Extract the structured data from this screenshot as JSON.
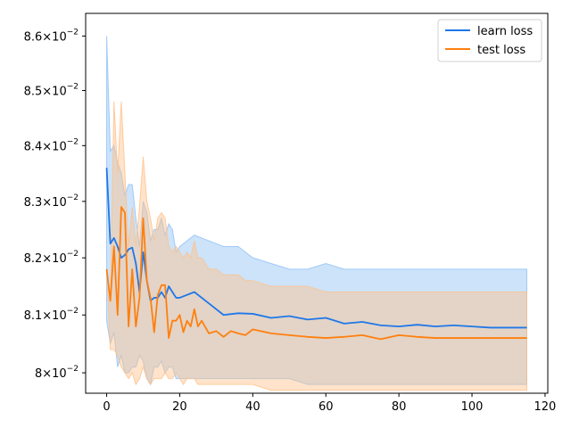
{
  "chart_data": {
    "type": "line",
    "title": "",
    "xlabel": "",
    "ylabel": "",
    "xlim": [
      -5.75,
      120.75
    ],
    "ylim": [
      0.07965,
      0.08642
    ],
    "yscale": "log",
    "x_ticks": [
      0,
      20,
      40,
      60,
      80,
      100,
      120
    ],
    "x_tick_labels": [
      "0",
      "20",
      "40",
      "60",
      "80",
      "100",
      "120"
    ],
    "y_ticks": [
      0.08,
      0.081,
      0.082,
      0.083,
      0.084,
      0.085,
      0.086
    ],
    "y_tick_labels": [
      {
        "mant": "8",
        "exp": "−2",
        "times": false
      },
      {
        "mant": "8.1",
        "exp": "−2",
        "times": true
      },
      {
        "mant": "8.2",
        "exp": "−2",
        "times": true
      },
      {
        "mant": "8.3",
        "exp": "−2",
        "times": true
      },
      {
        "mant": "8.4",
        "exp": "−2",
        "times": true
      },
      {
        "mant": "8.5",
        "exp": "−2",
        "times": true
      },
      {
        "mant": "8.6",
        "exp": "−2",
        "times": true
      }
    ],
    "tick_times": "×",
    "tick_base": "10",
    "legend": {
      "position": "top-right"
    },
    "series": [
      {
        "name": "learn loss",
        "color": "#1f77e8",
        "band_color": "#8fc1f5",
        "band_opacity": 0.45,
        "x": [
          0,
          1,
          2,
          3,
          4,
          5,
          6,
          7,
          8,
          9,
          10,
          11,
          12,
          13,
          14,
          15,
          16,
          17,
          18,
          19,
          20,
          24,
          28,
          32,
          36,
          40,
          45,
          50,
          55,
          60,
          65,
          70,
          75,
          80,
          85,
          90,
          95,
          100,
          105,
          110,
          115
        ],
        "values": [
          0.0836,
          0.08225,
          0.08235,
          0.0822,
          0.082,
          0.08205,
          0.08215,
          0.08218,
          0.0819,
          0.0814,
          0.0821,
          0.0816,
          0.08125,
          0.0813,
          0.0813,
          0.0814,
          0.0813,
          0.0815,
          0.0814,
          0.0813,
          0.0813,
          0.0814,
          0.0812,
          0.081,
          0.08103,
          0.08102,
          0.08095,
          0.08098,
          0.08092,
          0.08095,
          0.08085,
          0.08088,
          0.08082,
          0.0808,
          0.08083,
          0.0808,
          0.08082,
          0.0808,
          0.08078,
          0.08078,
          0.08078
        ],
        "upper": [
          0.086,
          0.0839,
          0.084,
          0.0837,
          0.0835,
          0.0831,
          0.0833,
          0.0833,
          0.0827,
          0.0822,
          0.083,
          0.0828,
          0.0823,
          0.0825,
          0.0825,
          0.0827,
          0.0824,
          0.0826,
          0.0825,
          0.0821,
          0.0822,
          0.0824,
          0.0823,
          0.0822,
          0.0822,
          0.082,
          0.0819,
          0.0818,
          0.0818,
          0.0819,
          0.0818,
          0.0818,
          0.0818,
          0.0818,
          0.0818,
          0.0818,
          0.0818,
          0.0818,
          0.0818,
          0.0818,
          0.0818
        ],
        "lower": [
          0.0809,
          0.0805,
          0.0807,
          0.0801,
          0.0803,
          0.08,
          0.08,
          0.0801,
          0.0801,
          0.0803,
          0.0802,
          0.0799,
          0.0798,
          0.0801,
          0.0801,
          0.0802,
          0.08,
          0.0801,
          0.0801,
          0.0799,
          0.0799,
          0.0799,
          0.0799,
          0.0799,
          0.0799,
          0.0799,
          0.0799,
          0.0799,
          0.0798,
          0.0798,
          0.0798,
          0.0798,
          0.0798,
          0.0798,
          0.0798,
          0.0798,
          0.0798,
          0.0798,
          0.0798,
          0.0798,
          0.0798
        ]
      },
      {
        "name": "test loss",
        "color": "#ff7f0e",
        "band_color": "#ffc08a",
        "band_opacity": 0.45,
        "x": [
          0,
          1,
          2,
          3,
          4,
          5,
          6,
          7,
          8,
          9,
          10,
          11,
          12,
          13,
          14,
          15,
          16,
          17,
          18,
          19,
          20,
          21,
          22,
          23,
          24,
          25,
          26,
          28,
          30,
          32,
          34,
          36,
          38,
          40,
          45,
          50,
          55,
          60,
          65,
          70,
          75,
          80,
          85,
          90,
          95,
          100,
          105,
          110,
          115
        ],
        "values": [
          0.0818,
          0.08125,
          0.0822,
          0.081,
          0.0829,
          0.0828,
          0.0808,
          0.0818,
          0.0808,
          0.0813,
          0.0827,
          0.0816,
          0.0813,
          0.0807,
          0.08135,
          0.08152,
          0.08152,
          0.0806,
          0.0809,
          0.0809,
          0.081,
          0.0807,
          0.0809,
          0.0808,
          0.0811,
          0.0808,
          0.0809,
          0.08068,
          0.08072,
          0.08062,
          0.08072,
          0.08068,
          0.08065,
          0.08075,
          0.08068,
          0.08065,
          0.08062,
          0.0806,
          0.08062,
          0.08065,
          0.08058,
          0.08065,
          0.08062,
          0.0806,
          0.0806,
          0.0806,
          0.0806,
          0.0806,
          0.0806
        ],
        "upper": [
          0.0818,
          0.0812,
          0.0848,
          0.0835,
          0.0848,
          0.0835,
          0.0822,
          0.0829,
          0.0822,
          0.0829,
          0.0838,
          0.083,
          0.0827,
          0.0823,
          0.0827,
          0.0828,
          0.0827,
          0.0822,
          0.0821,
          0.0822,
          0.0821,
          0.082,
          0.0821,
          0.082,
          0.0823,
          0.082,
          0.082,
          0.0818,
          0.0818,
          0.0817,
          0.0817,
          0.0817,
          0.0816,
          0.0816,
          0.0815,
          0.0815,
          0.0815,
          0.0814,
          0.0814,
          0.0814,
          0.0814,
          0.0814,
          0.0814,
          0.0814,
          0.0814,
          0.0814,
          0.0814,
          0.0814,
          0.0814
        ],
        "lower": [
          0.0818,
          0.0804,
          0.0804,
          0.0803,
          0.0801,
          0.08,
          0.0799,
          0.08,
          0.0798,
          0.0799,
          0.0801,
          0.0799,
          0.0798,
          0.0799,
          0.0799,
          0.0799,
          0.08,
          0.0799,
          0.0799,
          0.08,
          0.0799,
          0.0798,
          0.0799,
          0.0799,
          0.0799,
          0.0798,
          0.0798,
          0.0798,
          0.0798,
          0.0798,
          0.0798,
          0.0798,
          0.0798,
          0.0798,
          0.0797,
          0.0797,
          0.0797,
          0.0797,
          0.0797,
          0.0797,
          0.0797,
          0.0797,
          0.0797,
          0.0797,
          0.0797,
          0.0797,
          0.0797,
          0.0797,
          0.0797
        ]
      }
    ]
  }
}
